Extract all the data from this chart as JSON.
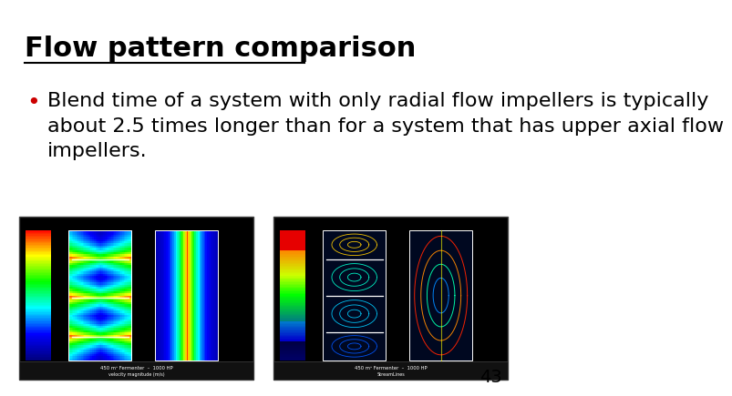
{
  "title": "Flow pattern comparison",
  "title_underline": true,
  "title_color": "#000000",
  "title_fontsize": 22,
  "bullet_color": "#cc0000",
  "bullet_lines": [
    "Blend time of a system with only radial flow impellers is typically",
    "about 2.5 times longer than for a system that has upper axial flow",
    "impellers."
  ],
  "bullet_fontsize": 16,
  "page_number": "43",
  "background_color": "#ffffff",
  "im1": [
    0.02,
    0.02,
    0.46,
    0.43
  ],
  "im2": [
    0.52,
    0.02,
    0.46,
    0.43
  ]
}
